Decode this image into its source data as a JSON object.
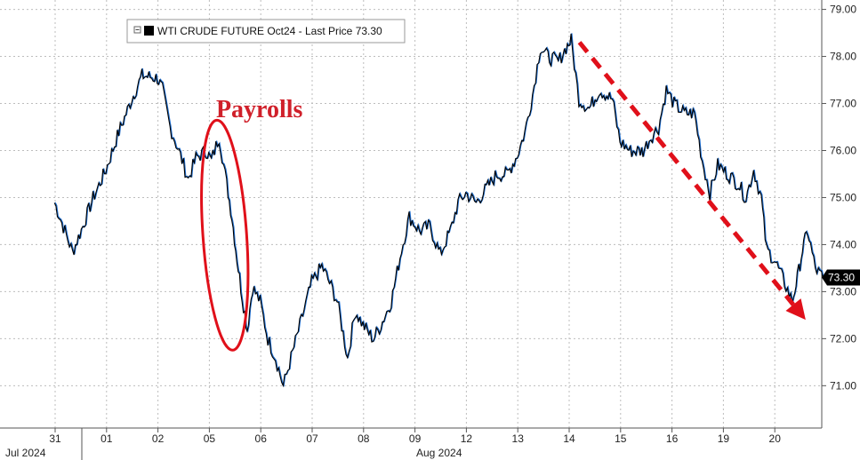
{
  "chart_data": {
    "type": "line",
    "title": "",
    "legend": {
      "label": "WTI CRUDE FUTURE Oct24 - Last Price 73.30",
      "placement": "top-left"
    },
    "y_axis": {
      "position": "right",
      "ylim": [
        70.1,
        79.2
      ],
      "ticks": [
        71,
        72,
        73,
        74,
        75,
        76,
        77,
        78,
        79
      ],
      "tick_labels": [
        "71.00",
        "72.00",
        "73.00",
        "74.00",
        "75.00",
        "76.00",
        "77.00",
        "78.00",
        "79.00"
      ]
    },
    "x_axis": {
      "categories": [
        "31",
        "01",
        "02",
        "05",
        "06",
        "07",
        "08",
        "09",
        "12",
        "13",
        "14",
        "15",
        "16",
        "19",
        "20"
      ],
      "month_labels": [
        "Jul 2024",
        "Aug 2024"
      ]
    },
    "grid": "horizontal-and-vertical dashed",
    "series": [
      {
        "color": "#000000",
        "highlight_color": "#1f6fd1",
        "points": [
          {
            "x": 0.0,
            "y": 74.9
          },
          {
            "x": 0.2,
            "y": 74.3
          },
          {
            "x": 0.35,
            "y": 73.85
          },
          {
            "x": 0.55,
            "y": 74.4
          },
          {
            "x": 0.75,
            "y": 75.0
          },
          {
            "x": 1.0,
            "y": 75.6
          },
          {
            "x": 1.25,
            "y": 76.4
          },
          {
            "x": 1.5,
            "y": 77.1
          },
          {
            "x": 1.7,
            "y": 77.6
          },
          {
            "x": 2.0,
            "y": 77.55
          },
          {
            "x": 2.1,
            "y": 77.3
          },
          {
            "x": 2.25,
            "y": 76.5
          },
          {
            "x": 2.45,
            "y": 75.9
          },
          {
            "x": 2.6,
            "y": 75.4
          },
          {
            "x": 2.75,
            "y": 75.85
          },
          {
            "x": 2.95,
            "y": 76.0
          },
          {
            "x": 3.05,
            "y": 75.8
          },
          {
            "x": 3.2,
            "y": 76.3
          },
          {
            "x": 3.35,
            "y": 75.3
          },
          {
            "x": 3.45,
            "y": 74.6
          },
          {
            "x": 3.55,
            "y": 73.7
          },
          {
            "x": 3.65,
            "y": 72.9
          },
          {
            "x": 3.75,
            "y": 72.2
          },
          {
            "x": 3.85,
            "y": 73.1
          },
          {
            "x": 4.0,
            "y": 72.8
          },
          {
            "x": 4.15,
            "y": 72.0
          },
          {
            "x": 4.3,
            "y": 71.6
          },
          {
            "x": 4.45,
            "y": 71.0
          },
          {
            "x": 4.6,
            "y": 71.6
          },
          {
            "x": 4.8,
            "y": 72.4
          },
          {
            "x": 5.0,
            "y": 73.2
          },
          {
            "x": 5.2,
            "y": 73.55
          },
          {
            "x": 5.35,
            "y": 73.2
          },
          {
            "x": 5.5,
            "y": 72.8
          },
          {
            "x": 5.7,
            "y": 71.6
          },
          {
            "x": 5.85,
            "y": 72.6
          },
          {
            "x": 6.0,
            "y": 72.3
          },
          {
            "x": 6.2,
            "y": 72.0
          },
          {
            "x": 6.35,
            "y": 72.3
          },
          {
            "x": 6.55,
            "y": 72.8
          },
          {
            "x": 6.75,
            "y": 73.9
          },
          {
            "x": 6.9,
            "y": 74.6
          },
          {
            "x": 7.1,
            "y": 74.3
          },
          {
            "x": 7.3,
            "y": 74.4
          },
          {
            "x": 7.5,
            "y": 73.8
          },
          {
            "x": 7.7,
            "y": 74.3
          },
          {
            "x": 7.85,
            "y": 74.9
          },
          {
            "x": 8.0,
            "y": 75.1
          },
          {
            "x": 8.2,
            "y": 74.9
          },
          {
            "x": 8.4,
            "y": 75.2
          },
          {
            "x": 8.6,
            "y": 75.5
          },
          {
            "x": 8.8,
            "y": 75.5
          },
          {
            "x": 9.0,
            "y": 75.9
          },
          {
            "x": 9.15,
            "y": 76.4
          },
          {
            "x": 9.3,
            "y": 77.2
          },
          {
            "x": 9.45,
            "y": 78.2
          },
          {
            "x": 9.6,
            "y": 78.0
          },
          {
            "x": 9.8,
            "y": 77.9
          },
          {
            "x": 9.95,
            "y": 78.2
          },
          {
            "x": 10.05,
            "y": 78.35
          },
          {
            "x": 10.2,
            "y": 77.1
          },
          {
            "x": 10.4,
            "y": 76.9
          },
          {
            "x": 10.6,
            "y": 77.3
          },
          {
            "x": 10.85,
            "y": 77.1
          },
          {
            "x": 11.0,
            "y": 76.2
          },
          {
            "x": 11.2,
            "y": 76.0
          },
          {
            "x": 11.45,
            "y": 76.0
          },
          {
            "x": 11.6,
            "y": 76.3
          },
          {
            "x": 11.75,
            "y": 76.5
          },
          {
            "x": 11.9,
            "y": 77.3
          },
          {
            "x": 12.05,
            "y": 77.0
          },
          {
            "x": 12.25,
            "y": 76.8
          },
          {
            "x": 12.45,
            "y": 76.8
          },
          {
            "x": 12.6,
            "y": 75.8
          },
          {
            "x": 12.75,
            "y": 75.1
          },
          {
            "x": 12.9,
            "y": 75.7
          },
          {
            "x": 13.1,
            "y": 75.5
          },
          {
            "x": 13.3,
            "y": 75.3
          },
          {
            "x": 13.45,
            "y": 75.0
          },
          {
            "x": 13.6,
            "y": 75.6
          },
          {
            "x": 13.75,
            "y": 75.0
          },
          {
            "x": 13.85,
            "y": 73.9
          },
          {
            "x": 14.0,
            "y": 73.7
          },
          {
            "x": 14.2,
            "y": 73.2
          },
          {
            "x": 14.35,
            "y": 72.8
          },
          {
            "x": 14.45,
            "y": 73.3
          },
          {
            "x": 14.55,
            "y": 73.9
          },
          {
            "x": 14.65,
            "y": 74.3
          },
          {
            "x": 14.8,
            "y": 73.5
          },
          {
            "x": 14.95,
            "y": 73.3
          }
        ]
      }
    ],
    "last_value": {
      "value": 73.3,
      "label": "73.30"
    },
    "annotations": [
      {
        "type": "text",
        "text": "Payrolls",
        "color": "#d0202a",
        "x": 3.2,
        "y": 76.9
      },
      {
        "type": "ellipse",
        "color": "#e0101a",
        "center_x": 3.3,
        "center_y": 74.2,
        "width_days": 0.85,
        "height_value": 4.9
      },
      {
        "type": "dashed-arrow",
        "color": "#e0101a",
        "from": {
          "x": 10.2,
          "y": 78.3
        },
        "to": {
          "x": 14.6,
          "y": 72.4
        }
      }
    ]
  }
}
